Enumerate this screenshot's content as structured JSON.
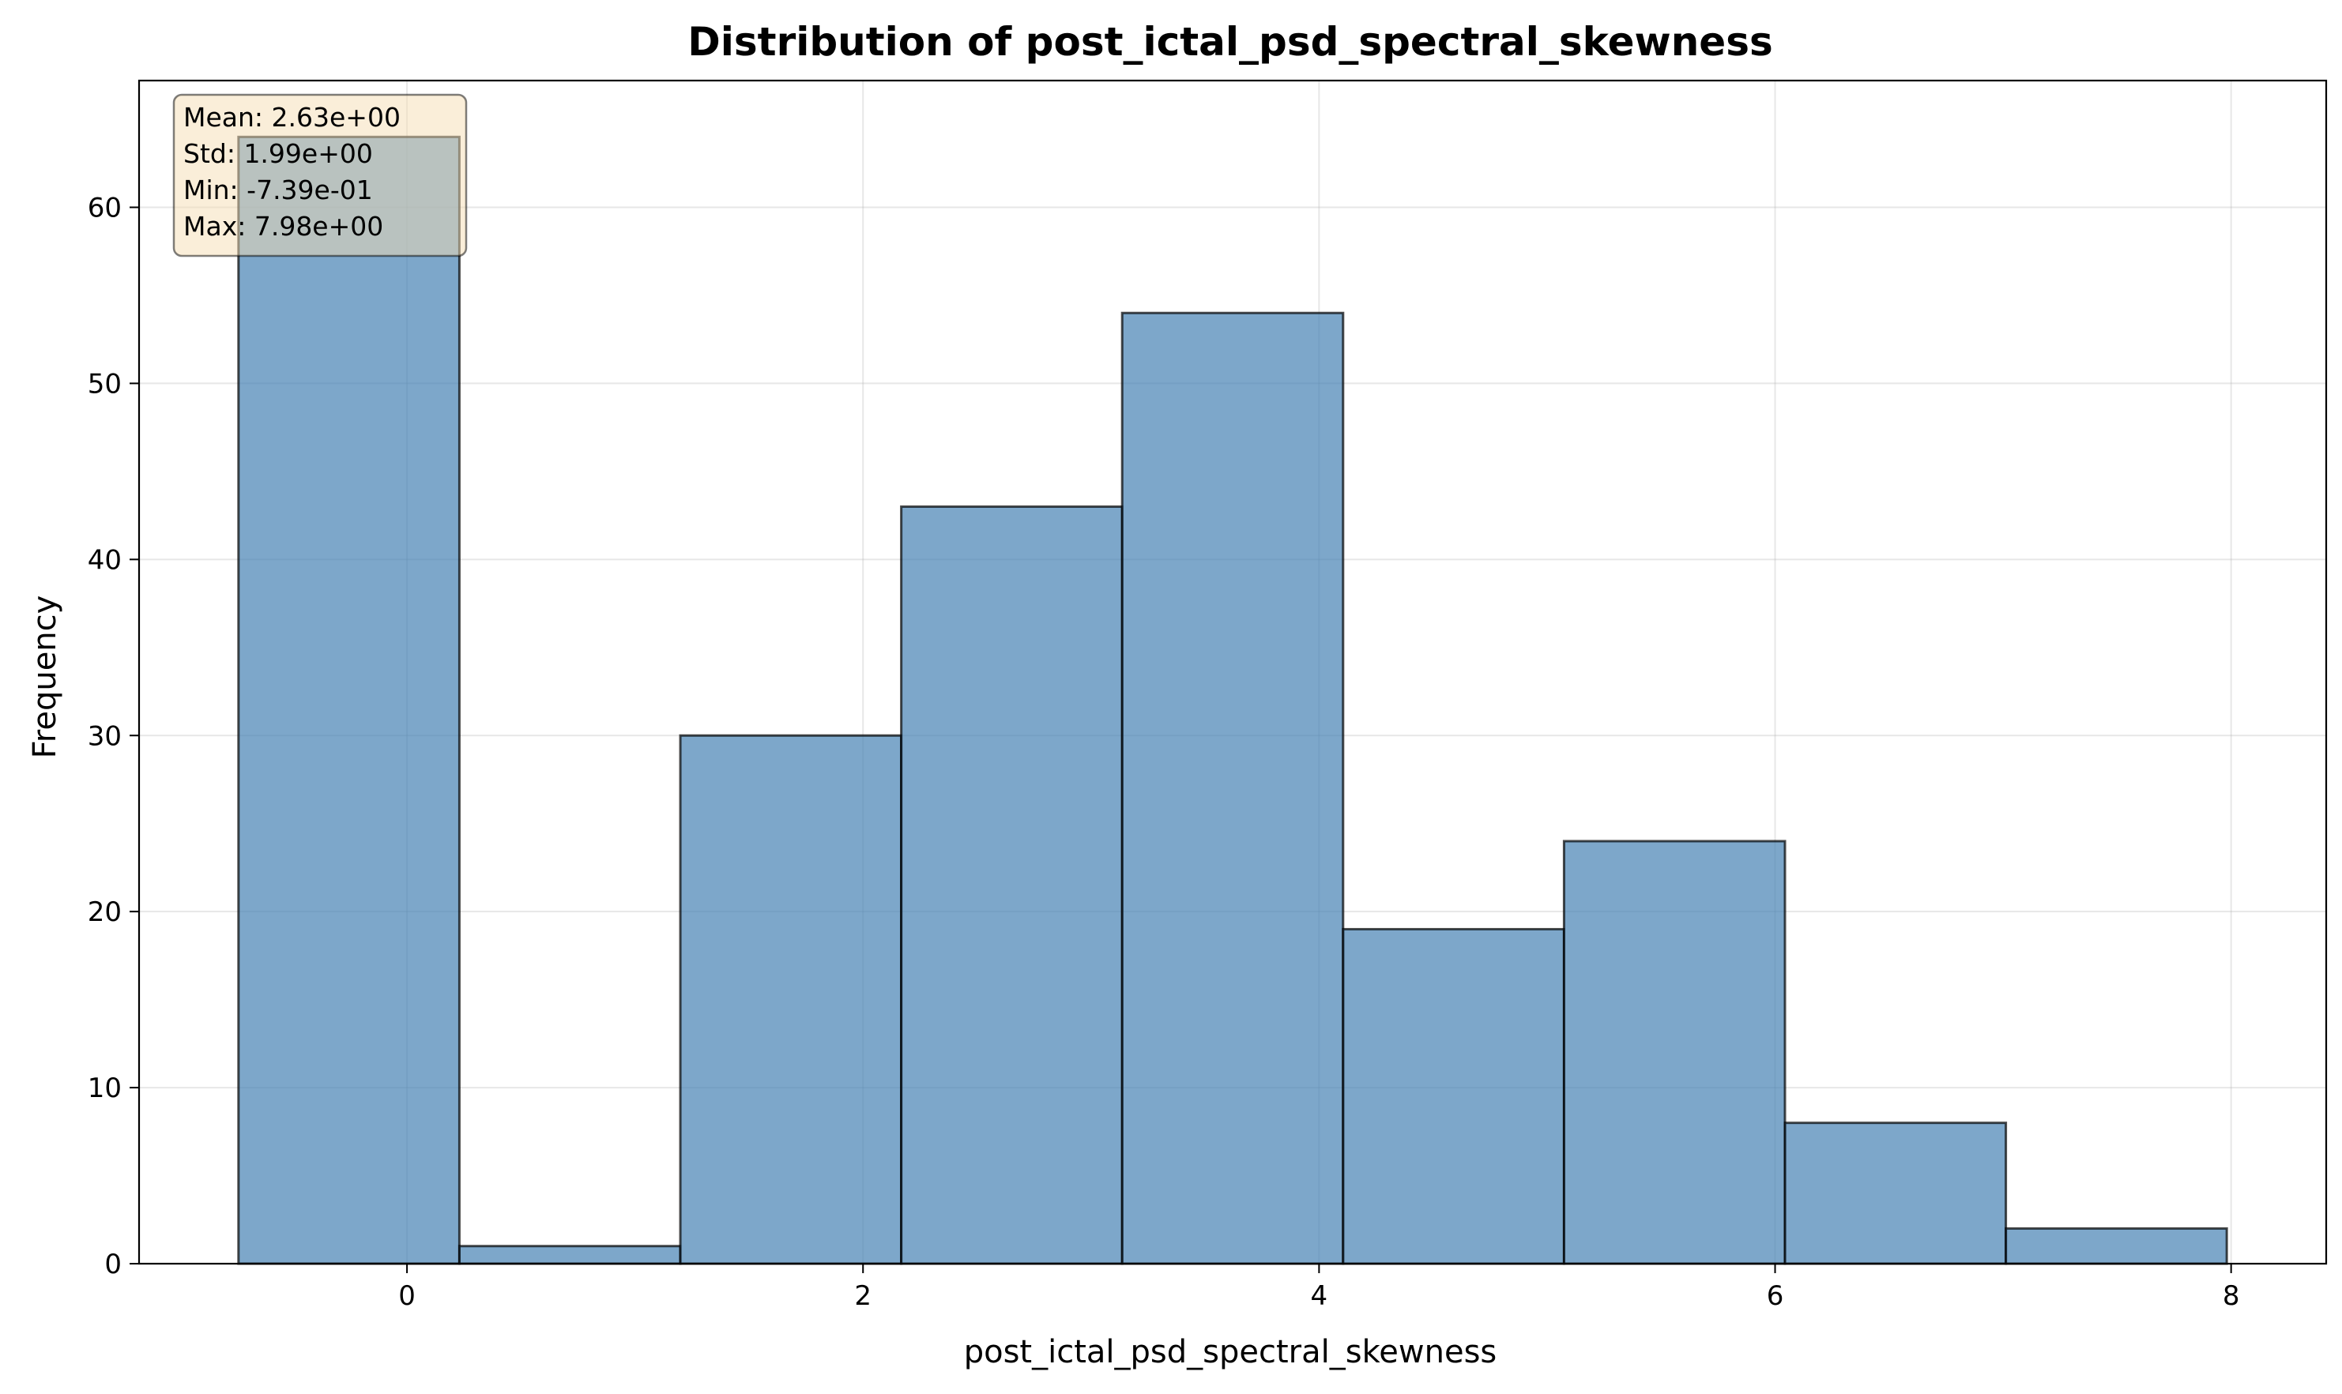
{
  "chart_data": {
    "type": "bar",
    "title": "Distribution of post_ictal_psd_spectral_skewness",
    "xlabel": "post_ictal_psd_spectral_skewness",
    "ylabel": "Frequency",
    "bin_edges": [
      -0.739,
      0.2299,
      1.1988,
      2.1677,
      3.1366,
      4.1055,
      5.0744,
      6.0433,
      7.0122,
      7.981
    ],
    "values": [
      64,
      1,
      30,
      43,
      54,
      19,
      24,
      8,
      2
    ],
    "xlim": [
      -1.175,
      8.417
    ],
    "ylim": [
      0,
      67.2
    ],
    "xticks": [
      0,
      2,
      4,
      6,
      8
    ],
    "yticks": [
      0,
      10,
      20,
      30,
      40,
      50,
      60
    ],
    "grid": true,
    "bar_color": "#4682b4",
    "edge_color": "#000000",
    "stats_box": {
      "placement": "top-left",
      "lines": [
        "Mean: 2.63e+00",
        "Std: 1.99e+00",
        "Min: -7.39e-01",
        "Max: 7.98e+00"
      ],
      "background": "#f5deb3"
    }
  }
}
